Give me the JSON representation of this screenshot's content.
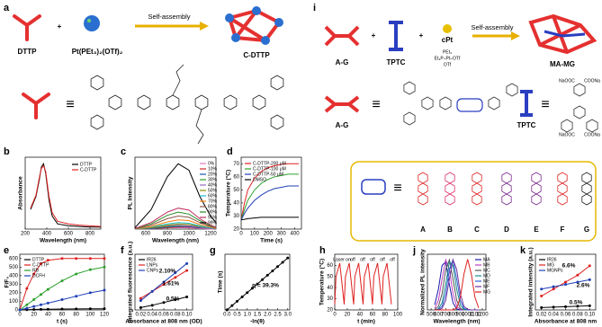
{
  "schemes": {
    "a": {
      "panel": "a",
      "dttp": "DTTP",
      "plus": "+",
      "pt": "Pt(PEt₃)₂(OTf)₂",
      "arrow": "Self-assembly",
      "cage": "C-DTTP",
      "equiv": "≡"
    },
    "i": {
      "panel": "i",
      "ag": "A-G",
      "plus1": "+",
      "tptc": "TPTC",
      "plus2": "+",
      "cpt": "cPt",
      "pet": "PEt₃",
      "ptline": "Et₃P–Pt–OTf",
      "otf": "OTf",
      "arrow": "Self-assembly",
      "mamg": "MA-MG",
      "ag2": "A-G",
      "equiv1": "≡",
      "tptc2": "TPTC",
      "equiv2": "≡",
      "naooc1": "NaOOC",
      "coona1": "COONa",
      "naooc2": "NaOOC",
      "coona2": "COONa",
      "equiv3": "≡",
      "units": [
        {
          "label": "A",
          "color": "#e02424"
        },
        {
          "label": "B",
          "color": "#e0306a"
        },
        {
          "label": "C",
          "color": "#e02424"
        },
        {
          "label": "D",
          "color": "#7a2a8c"
        },
        {
          "label": "E",
          "color": "#7a2a8c"
        },
        {
          "label": "F",
          "color": "#e02424"
        },
        {
          "label": "G",
          "color": "#222222"
        }
      ]
    }
  },
  "chart_data": [
    {
      "type": "line",
      "panel": "b",
      "xlabel": "Wavelength (nm)",
      "ylabel": "Absorbance",
      "xlim": [
        200,
        900
      ],
      "xticks": [
        200,
        400,
        600,
        800
      ],
      "ylim": [
        0,
        1.1
      ],
      "x": [
        250,
        300,
        330,
        350,
        370,
        390,
        420,
        450,
        500,
        600,
        700,
        800,
        900
      ],
      "series": [
        {
          "name": "DTTP",
          "color": "#000000",
          "values": [
            0.3,
            0.5,
            0.75,
            0.95,
            1.0,
            0.85,
            0.45,
            0.2,
            0.08,
            0.05,
            0.04,
            0.03,
            0.03
          ]
        },
        {
          "name": "C-DTTP",
          "color": "#e02020",
          "values": [
            0.32,
            0.52,
            0.78,
            0.93,
            0.97,
            0.88,
            0.5,
            0.25,
            0.12,
            0.08,
            0.06,
            0.05,
            0.04
          ]
        }
      ]
    },
    {
      "type": "line",
      "panel": "c",
      "xlabel": "Wavelength (nm)",
      "ylabel": "PL Intensity",
      "xlim": [
        500,
        1250
      ],
      "xticks": [
        600,
        800,
        1000,
        1200
      ],
      "ylim": [
        0,
        1.1
      ],
      "x": [
        500,
        650,
        800,
        900,
        1000,
        1100,
        1200,
        1250
      ],
      "series": [
        {
          "name": "0%",
          "color": "#e377c2",
          "values": [
            0.0,
            0.01,
            0.02,
            0.02,
            0.02,
            0.01,
            0.0,
            0.0
          ]
        },
        {
          "name": "10%",
          "color": "#d62728",
          "values": [
            0.0,
            0.01,
            0.02,
            0.03,
            0.03,
            0.02,
            0.01,
            0.0
          ]
        },
        {
          "name": "20%",
          "color": "#1f4fb4",
          "values": [
            0.0,
            0.01,
            0.03,
            0.04,
            0.04,
            0.02,
            0.01,
            0.0
          ]
        },
        {
          "name": "30%",
          "color": "#2ca02c",
          "values": [
            0.0,
            0.02,
            0.04,
            0.05,
            0.05,
            0.03,
            0.01,
            0.01
          ]
        },
        {
          "name": "40%",
          "color": "#9467bd",
          "values": [
            0.0,
            0.02,
            0.05,
            0.06,
            0.05,
            0.03,
            0.01,
            0.01
          ]
        },
        {
          "name": "50%",
          "color": "#8c8c00",
          "values": [
            0.0,
            0.02,
            0.06,
            0.08,
            0.07,
            0.04,
            0.02,
            0.01
          ]
        },
        {
          "name": "60%",
          "color": "#17becf",
          "values": [
            0.0,
            0.03,
            0.08,
            0.1,
            0.09,
            0.05,
            0.02,
            0.01
          ]
        },
        {
          "name": "70%",
          "color": "#ff7f0e",
          "values": [
            0.0,
            0.04,
            0.11,
            0.14,
            0.13,
            0.07,
            0.03,
            0.01
          ]
        },
        {
          "name": "80%",
          "color": "#8c564b",
          "values": [
            0.0,
            0.06,
            0.16,
            0.2,
            0.18,
            0.1,
            0.04,
            0.02
          ]
        },
        {
          "name": "90%",
          "color": "#2a8a2a",
          "values": [
            0.01,
            0.08,
            0.21,
            0.26,
            0.23,
            0.13,
            0.05,
            0.03
          ]
        },
        {
          "name": "95%",
          "color": "#c03060",
          "values": [
            0.01,
            0.1,
            0.26,
            0.32,
            0.29,
            0.16,
            0.06,
            0.03
          ]
        },
        {
          "name": "99%",
          "color": "#000000",
          "values": [
            0.02,
            0.3,
            0.8,
            1.0,
            0.9,
            0.5,
            0.2,
            0.1
          ]
        }
      ]
    },
    {
      "type": "line",
      "panel": "d",
      "xlabel": "Time (s)",
      "ylabel": "Temperature (°C)",
      "xlim": [
        0,
        450
      ],
      "xticks": [
        0,
        100,
        200,
        300,
        400
      ],
      "ylim": [
        20,
        75
      ],
      "yticks": [
        20,
        30,
        40,
        50,
        60,
        70
      ],
      "x": [
        0,
        25,
        50,
        100,
        150,
        200,
        250,
        300,
        350,
        400,
        430
      ],
      "series": [
        {
          "name": "C-DTTP-200 μM",
          "color": "#e02020",
          "values": [
            27,
            40,
            50,
            59,
            64,
            67,
            68.5,
            69.5,
            70,
            70,
            70
          ]
        },
        {
          "name": "C-DTTP-100 μM",
          "color": "#2ca02c",
          "values": [
            27,
            35,
            42,
            50,
            55,
            58,
            60,
            61,
            62,
            62,
            62
          ]
        },
        {
          "name": "C-DTTP-50 μM",
          "color": "#1f3fb4",
          "values": [
            27,
            32,
            36,
            42,
            46,
            49,
            51,
            52,
            53,
            53,
            53
          ]
        },
        {
          "name": "DMSO",
          "color": "#000000",
          "values": [
            27,
            27.5,
            28,
            28.5,
            29,
            29,
            29,
            29,
            29,
            29,
            29
          ]
        }
      ]
    },
    {
      "type": "line",
      "panel": "e",
      "markers": true,
      "xlabel": "t (s)",
      "ylabel": "F/F₀",
      "xlim": [
        0,
        120
      ],
      "xticks": [
        0,
        20,
        40,
        60,
        80,
        100,
        120
      ],
      "ylim": [
        0,
        650
      ],
      "yticks": [
        0,
        100,
        200,
        300,
        400,
        500,
        600
      ],
      "x": [
        0,
        10,
        20,
        30,
        40,
        60,
        80,
        100,
        120
      ],
      "series": [
        {
          "name": "DTTP",
          "color": "#000000",
          "values": [
            0,
            3,
            5,
            7,
            8,
            10,
            12,
            13,
            14
          ]
        },
        {
          "name": "C-DTTP",
          "color": "#e02020",
          "values": [
            0,
            250,
            420,
            540,
            580,
            600,
            600,
            600,
            600
          ]
        },
        {
          "name": "RB",
          "color": "#2ca02c",
          "values": [
            0,
            60,
            120,
            180,
            240,
            340,
            420,
            470,
            500
          ]
        },
        {
          "name": "DCFH",
          "color": "#1f3fb4",
          "values": [
            0,
            20,
            40,
            60,
            80,
            120,
            160,
            200,
            230
          ]
        }
      ]
    },
    {
      "type": "line",
      "panel": "f",
      "markers": true,
      "xlabel": "Absorbance at 808 nm (OD)",
      "ylabel": "Integrated fluorescence (a.u.)",
      "xlim": [
        0.01,
        0.11
      ],
      "xticks": [
        0.02,
        0.04,
        0.06,
        0.08,
        {
          "value": 0.1,
          "label": "0.10"
        }
      ],
      "ylim": [
        0,
        1.2
      ],
      "x": [
        0.02,
        0.04,
        0.06,
        0.08,
        0.1
      ],
      "series": [
        {
          "name": "IR26",
          "color": "#000000",
          "values": [
            0.05,
            0.1,
            0.16,
            0.22,
            0.28
          ]
        },
        {
          "name": "LNPs",
          "color": "#e02020",
          "values": [
            0.25,
            0.4,
            0.55,
            0.7,
            0.85
          ]
        },
        {
          "name": "CNPs",
          "color": "#1f3fb4",
          "values": [
            0.2,
            0.4,
            0.6,
            0.8,
            1.0
          ]
        }
      ],
      "annotations": [
        "2.10%",
        "1.61%",
        "0.5%"
      ]
    },
    {
      "type": "line",
      "panel": "g",
      "markers": true,
      "xlabel": "-ln(θ)",
      "ylabel": "Time (s)",
      "xlim": [
        -0.1,
        3.1
      ],
      "xticks": [
        {
          "value": 0,
          "label": "0.0"
        },
        0.5,
        {
          "value": 1,
          "label": "1.0"
        },
        1.5,
        {
          "value": 2,
          "label": "2.0"
        },
        2.5,
        {
          "value": 3,
          "label": "3.0"
        }
      ],
      "ylim": [
        0,
        450
      ],
      "x": [
        0,
        0.25,
        0.5,
        0.75,
        1.0,
        1.25,
        1.5,
        1.75,
        2.0,
        2.25,
        2.5,
        2.75,
        3.0
      ],
      "series": [
        {
          "color": "#000000",
          "values": [
            0,
            35,
            70,
            105,
            140,
            175,
            210,
            245,
            280,
            315,
            350,
            385,
            420
          ]
        }
      ],
      "annotations": [
        "η = 39.3%"
      ]
    },
    {
      "type": "line",
      "panel": "h",
      "xlabel": "t (min)",
      "ylabel": "Temperature (°C)",
      "xlim": [
        0,
        100
      ],
      "xticks": [
        0,
        20,
        40,
        60,
        80,
        100
      ],
      "ylim": [
        20,
        70
      ],
      "yticks": [
        20,
        30,
        40,
        50,
        60
      ],
      "x": [
        0,
        2,
        8,
        15,
        17,
        23,
        30,
        32,
        38,
        45,
        47,
        53,
        60,
        62,
        68,
        75,
        77,
        83,
        90
      ],
      "series": [
        {
          "color": "#e02020",
          "values": [
            25,
            50,
            62,
            25,
            50,
            62,
            25,
            50,
            62,
            25,
            50,
            62,
            25,
            50,
            62,
            25,
            50,
            62,
            25
          ]
        }
      ],
      "annotations": [
        "Laser on",
        "off",
        "off",
        "off",
        "off",
        "off"
      ]
    },
    {
      "type": "line",
      "panel": "j",
      "xlabel": "Wavelength (nm)",
      "ylabel": "Normalized PL intensity",
      "xlim": [
        450,
        1250
      ],
      "xticks": [
        500,
        600,
        700,
        800,
        900,
        1000,
        1100,
        1200
      ],
      "ylim": [
        0,
        1.1
      ],
      "x": [
        550,
        600,
        650,
        700,
        750,
        800,
        850,
        900,
        950,
        1000,
        1050,
        1100,
        1150
      ],
      "series": [
        {
          "name": "MA",
          "color": "#1a1aa6",
          "values": [
            0.1,
            0.41,
            0.88,
            0.95,
            0.5,
            0.14,
            0.02,
            0,
            0,
            0,
            0,
            0,
            0
          ]
        },
        {
          "name": "MB",
          "color": "#c040c0",
          "values": [
            0.03,
            0.19,
            0.61,
            0.99,
            0.8,
            0.32,
            0.07,
            0.01,
            0,
            0,
            0,
            0,
            0
          ]
        },
        {
          "name": "MC",
          "color": "#555555",
          "values": [
            0.01,
            0.07,
            0.32,
            0.8,
            0.99,
            0.61,
            0.19,
            0.03,
            0,
            0,
            0,
            0,
            0
          ]
        },
        {
          "name": "MD",
          "color": "#1a8a8a",
          "values": [
            0,
            0.02,
            0.14,
            0.5,
            0.95,
            0.88,
            0.41,
            0.1,
            0.01,
            0,
            0,
            0,
            0
          ]
        },
        {
          "name": "ME",
          "color": "#3060d0",
          "values": [
            0,
            0.01,
            0.07,
            0.32,
            0.8,
            0.99,
            0.61,
            0.19,
            0.03,
            0,
            0,
            0,
            0
          ]
        },
        {
          "name": "MF",
          "color": "#7030a0",
          "values": [
            0,
            0,
            0.03,
            0.19,
            0.61,
            0.99,
            0.8,
            0.32,
            0.07,
            0.01,
            0,
            0,
            0
          ]
        },
        {
          "name": "MG",
          "color": "#e02020",
          "values": [
            0,
            0,
            0,
            0,
            0,
            0,
            0.04,
            0.25,
            0.71,
            1,
            0.71,
            0.25,
            0.04
          ]
        }
      ]
    },
    {
      "type": "line",
      "panel": "k",
      "markers": true,
      "xlabel": "Absorbance at 808 nm",
      "ylabel": "Integrated intensity (a.u.)",
      "xlim": [
        0.01,
        0.11
      ],
      "xticks": [
        0.02,
        0.04,
        0.06,
        0.08,
        {
          "value": 0.1,
          "label": "0.10"
        }
      ],
      "ylim": [
        0,
        1.2
      ],
      "x": [
        0.02,
        0.04,
        0.06,
        0.08,
        0.1
      ],
      "series": [
        {
          "name": "IR26",
          "color": "#000000",
          "values": [
            0.05,
            0.06,
            0.07,
            0.08,
            0.09
          ]
        },
        {
          "name": "MG",
          "color": "#e02020",
          "values": [
            0.3,
            0.45,
            0.6,
            0.75,
            0.95
          ]
        },
        {
          "name": "MGNPs",
          "color": "#1f3fb4",
          "values": [
            0.45,
            0.5,
            0.55,
            0.6,
            0.65
          ]
        }
      ],
      "annotations": [
        "6.6%",
        "2.6%",
        "0.5%"
      ]
    }
  ]
}
